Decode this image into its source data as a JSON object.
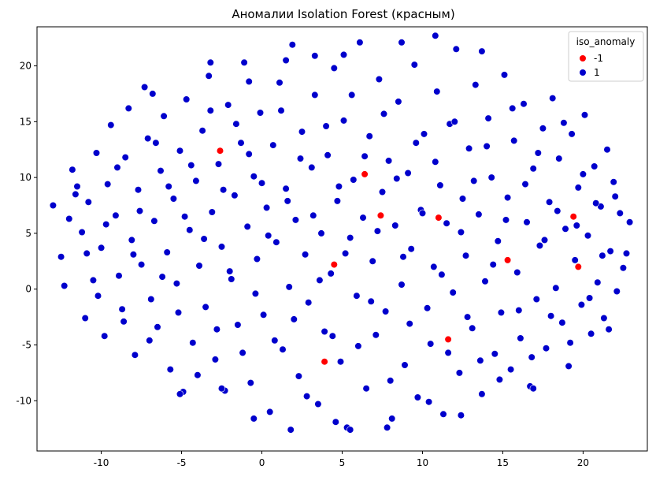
{
  "chart_data": {
    "type": "scatter",
    "title": "Аномалии Isolation Forest (красным)",
    "xlabel": "",
    "ylabel": "",
    "xlim": [
      -14.0,
      24.0
    ],
    "ylim": [
      -14.5,
      23.5
    ],
    "xticks": [
      -10,
      -5,
      0,
      5,
      10,
      15,
      20
    ],
    "yticks": [
      -10,
      -5,
      0,
      5,
      10,
      15,
      20
    ],
    "legend": {
      "title": "iso_anomaly",
      "placement": "top-right",
      "entries": [
        {
          "label": "-1",
          "color": "#ff0000"
        },
        {
          "label": "1",
          "color": "#0000cc"
        }
      ]
    },
    "series": [
      {
        "name": "1",
        "color": "#0000cc",
        "points": [
          [
            -13.0,
            7.5
          ],
          [
            -12.5,
            2.9
          ],
          [
            -12.3,
            0.3
          ],
          [
            -12.0,
            6.3
          ],
          [
            -11.8,
            10.7
          ],
          [
            -11.5,
            9.2
          ],
          [
            -11.2,
            5.1
          ],
          [
            -11.0,
            -2.6
          ],
          [
            -10.8,
            7.8
          ],
          [
            -10.5,
            0.8
          ],
          [
            -10.3,
            12.2
          ],
          [
            -10.0,
            3.7
          ],
          [
            -9.8,
            -4.2
          ],
          [
            -9.6,
            9.4
          ],
          [
            -9.4,
            14.7
          ],
          [
            -9.1,
            6.6
          ],
          [
            -8.9,
            1.2
          ],
          [
            -8.7,
            -1.8
          ],
          [
            -8.5,
            11.8
          ],
          [
            -8.3,
            16.2
          ],
          [
            -8.1,
            4.4
          ],
          [
            -7.9,
            -5.9
          ],
          [
            -7.7,
            8.9
          ],
          [
            -7.5,
            2.2
          ],
          [
            -7.3,
            18.1
          ],
          [
            -7.1,
            13.5
          ],
          [
            -6.9,
            -0.9
          ],
          [
            -6.7,
            6.1
          ],
          [
            -6.5,
            -3.4
          ],
          [
            -6.3,
            10.6
          ],
          [
            -6.1,
            15.5
          ],
          [
            -5.9,
            3.3
          ],
          [
            -5.7,
            -7.2
          ],
          [
            -5.5,
            8.1
          ],
          [
            -5.3,
            0.5
          ],
          [
            -5.1,
            12.4
          ],
          [
            -4.9,
            -9.2
          ],
          [
            -4.7,
            17.0
          ],
          [
            -4.5,
            5.3
          ],
          [
            -4.3,
            -4.8
          ],
          [
            -4.1,
            9.7
          ],
          [
            -3.9,
            2.1
          ],
          [
            -3.7,
            14.2
          ],
          [
            -3.5,
            -1.6
          ],
          [
            -3.3,
            19.1
          ],
          [
            -3.1,
            6.9
          ],
          [
            -2.9,
            -6.3
          ],
          [
            -2.7,
            11.2
          ],
          [
            -2.5,
            3.8
          ],
          [
            -2.3,
            -9.1
          ],
          [
            -2.1,
            16.5
          ],
          [
            -1.9,
            0.9
          ],
          [
            -1.7,
            8.4
          ],
          [
            -1.5,
            -3.2
          ],
          [
            -1.3,
            13.1
          ],
          [
            -1.1,
            20.3
          ],
          [
            -0.9,
            5.6
          ],
          [
            -0.7,
            -8.4
          ],
          [
            -0.5,
            10.1
          ],
          [
            -0.3,
            2.7
          ],
          [
            -0.1,
            15.8
          ],
          [
            0.1,
            -2.3
          ],
          [
            0.3,
            7.3
          ],
          [
            0.5,
            -11.0
          ],
          [
            0.7,
            12.9
          ],
          [
            0.9,
            4.2
          ],
          [
            1.1,
            18.5
          ],
          [
            1.3,
            -5.4
          ],
          [
            1.5,
            9.0
          ],
          [
            1.7,
            0.2
          ],
          [
            1.9,
            21.9
          ],
          [
            2.1,
            6.2
          ],
          [
            2.3,
            -7.8
          ],
          [
            2.5,
            14.1
          ],
          [
            2.7,
            3.1
          ],
          [
            2.9,
            -1.2
          ],
          [
            3.1,
            10.9
          ],
          [
            3.3,
            17.4
          ],
          [
            3.5,
            -10.3
          ],
          [
            3.7,
            5.0
          ],
          [
            3.9,
            -3.8
          ],
          [
            4.1,
            12.0
          ],
          [
            4.3,
            1.4
          ],
          [
            4.5,
            19.8
          ],
          [
            4.7,
            7.9
          ],
          [
            4.9,
            -6.5
          ],
          [
            5.1,
            15.1
          ],
          [
            5.3,
            -12.4
          ],
          [
            5.5,
            4.6
          ],
          [
            5.7,
            9.8
          ],
          [
            5.9,
            -0.6
          ],
          [
            6.1,
            22.1
          ],
          [
            6.3,
            6.4
          ],
          [
            6.5,
            -8.9
          ],
          [
            6.7,
            13.7
          ],
          [
            6.9,
            2.5
          ],
          [
            7.1,
            -4.1
          ],
          [
            7.3,
            18.8
          ],
          [
            7.5,
            8.7
          ],
          [
            7.7,
            -2.0
          ],
          [
            7.9,
            11.5
          ],
          [
            8.1,
            -11.6
          ],
          [
            8.3,
            5.7
          ],
          [
            8.5,
            16.8
          ],
          [
            8.7,
            0.4
          ],
          [
            8.9,
            -6.8
          ],
          [
            9.1,
            10.4
          ],
          [
            9.3,
            3.6
          ],
          [
            9.5,
            20.1
          ],
          [
            9.7,
            -9.7
          ],
          [
            9.9,
            7.1
          ],
          [
            10.1,
            13.9
          ],
          [
            10.3,
            -1.7
          ],
          [
            10.5,
            -4.9
          ],
          [
            10.7,
            2.0
          ],
          [
            10.9,
            17.7
          ],
          [
            11.1,
            9.3
          ],
          [
            11.3,
            -11.2
          ],
          [
            11.5,
            5.9
          ],
          [
            11.7,
            14.8
          ],
          [
            11.9,
            -0.3
          ],
          [
            12.1,
            21.5
          ],
          [
            12.3,
            -7.5
          ],
          [
            12.5,
            8.1
          ],
          [
            12.7,
            3.0
          ],
          [
            12.9,
            12.6
          ],
          [
            13.1,
            -3.5
          ],
          [
            13.3,
            18.3
          ],
          [
            13.5,
            6.7
          ],
          [
            13.7,
            -9.4
          ],
          [
            13.9,
            0.7
          ],
          [
            14.1,
            15.3
          ],
          [
            14.3,
            10.0
          ],
          [
            14.5,
            -5.8
          ],
          [
            14.7,
            4.3
          ],
          [
            14.9,
            -2.1
          ],
          [
            15.1,
            19.2
          ],
          [
            15.3,
            8.2
          ],
          [
            15.5,
            -7.2
          ],
          [
            15.7,
            13.3
          ],
          [
            15.9,
            1.5
          ],
          [
            16.1,
            -4.4
          ],
          [
            16.3,
            16.6
          ],
          [
            16.5,
            6.0
          ],
          [
            16.7,
            -8.7
          ],
          [
            16.9,
            10.8
          ],
          [
            17.1,
            -0.9
          ],
          [
            17.3,
            3.9
          ],
          [
            17.5,
            14.4
          ],
          [
            17.7,
            -5.3
          ],
          [
            17.9,
            7.8
          ],
          [
            18.1,
            17.1
          ],
          [
            18.3,
            0.1
          ],
          [
            18.5,
            11.7
          ],
          [
            18.7,
            -3.0
          ],
          [
            18.9,
            5.4
          ],
          [
            19.1,
            -6.9
          ],
          [
            19.3,
            13.9
          ],
          [
            19.5,
            2.6
          ],
          [
            19.7,
            9.1
          ],
          [
            19.9,
            -1.4
          ],
          [
            20.1,
            15.6
          ],
          [
            20.3,
            4.8
          ],
          [
            20.5,
            -4.0
          ],
          [
            20.7,
            11.0
          ],
          [
            20.9,
            0.6
          ],
          [
            21.1,
            7.4
          ],
          [
            21.3,
            -2.6
          ],
          [
            21.5,
            12.5
          ],
          [
            21.7,
            3.4
          ],
          [
            21.9,
            9.6
          ],
          [
            22.1,
            -0.2
          ],
          [
            22.3,
            6.8
          ],
          [
            22.5,
            1.9
          ],
          [
            22.7,
            3.2
          ],
          [
            22.9,
            6.0
          ],
          [
            -11.6,
            8.5
          ],
          [
            -10.9,
            3.2
          ],
          [
            -10.2,
            -0.6
          ],
          [
            -9.7,
            5.8
          ],
          [
            -9.0,
            10.9
          ],
          [
            -8.6,
            -2.9
          ],
          [
            -8.0,
            3.1
          ],
          [
            -7.6,
            7.0
          ],
          [
            -7.0,
            -4.6
          ],
          [
            -6.6,
            13.1
          ],
          [
            -6.2,
            1.1
          ],
          [
            -5.8,
            9.2
          ],
          [
            -5.2,
            -2.1
          ],
          [
            -4.8,
            6.5
          ],
          [
            -4.4,
            11.1
          ],
          [
            -4.0,
            -7.7
          ],
          [
            -3.6,
            4.5
          ],
          [
            -3.2,
            16.0
          ],
          [
            -2.8,
            -3.6
          ],
          [
            -2.4,
            8.9
          ],
          [
            -2.0,
            1.6
          ],
          [
            -1.6,
            14.8
          ],
          [
            -1.2,
            -5.7
          ],
          [
            -0.8,
            12.1
          ],
          [
            -0.4,
            -0.4
          ],
          [
            0.0,
            9.5
          ],
          [
            0.4,
            4.8
          ],
          [
            0.8,
            -4.6
          ],
          [
            1.2,
            16.0
          ],
          [
            1.6,
            7.9
          ],
          [
            2.0,
            -2.7
          ],
          [
            2.4,
            11.7
          ],
          [
            2.8,
            -9.6
          ],
          [
            3.2,
            6.6
          ],
          [
            3.6,
            0.8
          ],
          [
            4.0,
            14.6
          ],
          [
            4.4,
            -4.2
          ],
          [
            4.8,
            9.2
          ],
          [
            5.2,
            3.2
          ],
          [
            5.6,
            17.4
          ],
          [
            6.0,
            -5.1
          ],
          [
            6.4,
            11.9
          ],
          [
            6.8,
            -1.1
          ],
          [
            7.2,
            5.2
          ],
          [
            7.6,
            15.7
          ],
          [
            8.0,
            -8.2
          ],
          [
            8.4,
            9.9
          ],
          [
            8.8,
            2.9
          ],
          [
            9.2,
            -3.1
          ],
          [
            9.6,
            13.1
          ],
          [
            10.0,
            6.8
          ],
          [
            10.4,
            -10.1
          ],
          [
            10.8,
            11.4
          ],
          [
            11.2,
            1.3
          ],
          [
            11.6,
            -5.7
          ],
          [
            12.0,
            15.0
          ],
          [
            12.4,
            5.1
          ],
          [
            12.8,
            -2.5
          ],
          [
            13.2,
            9.7
          ],
          [
            13.6,
            -6.4
          ],
          [
            14.0,
            12.8
          ],
          [
            14.4,
            2.2
          ],
          [
            14.8,
            -8.1
          ],
          [
            15.2,
            6.2
          ],
          [
            15.6,
            16.2
          ],
          [
            16.0,
            -1.9
          ],
          [
            16.4,
            9.4
          ],
          [
            16.8,
            -6.1
          ],
          [
            17.2,
            12.2
          ],
          [
            17.6,
            4.4
          ],
          [
            18.0,
            -2.4
          ],
          [
            18.4,
            7.0
          ],
          [
            18.8,
            14.9
          ],
          [
            19.2,
            -4.8
          ],
          [
            19.6,
            5.7
          ],
          [
            20.0,
            10.3
          ],
          [
            20.4,
            -0.8
          ],
          [
            20.8,
            7.7
          ],
          [
            21.2,
            3.0
          ],
          [
            21.6,
            -3.6
          ],
          [
            22.0,
            8.3
          ],
          [
            -0.5,
            -11.6
          ],
          [
            1.8,
            -12.6
          ],
          [
            4.6,
            -11.9
          ],
          [
            5.5,
            -12.6
          ],
          [
            7.8,
            -12.4
          ],
          [
            12.4,
            -11.3
          ],
          [
            -2.5,
            -8.9
          ],
          [
            -5.1,
            -9.4
          ],
          [
            16.9,
            -8.9
          ],
          [
            1.5,
            20.5
          ],
          [
            3.3,
            20.9
          ],
          [
            5.1,
            21.0
          ],
          [
            8.7,
            22.1
          ],
          [
            10.8,
            22.7
          ],
          [
            13.7,
            21.3
          ],
          [
            -3.2,
            20.3
          ],
          [
            -0.8,
            18.6
          ],
          [
            -6.8,
            17.5
          ]
        ]
      },
      {
        "name": "-1",
        "color": "#ff0000",
        "points": [
          [
            -2.6,
            12.4
          ],
          [
            6.4,
            10.3
          ],
          [
            7.4,
            6.6
          ],
          [
            11.0,
            6.4
          ],
          [
            19.4,
            6.5
          ],
          [
            15.3,
            2.6
          ],
          [
            19.7,
            2.0
          ],
          [
            4.5,
            2.2
          ],
          [
            11.6,
            -4.5
          ],
          [
            3.9,
            -6.5
          ]
        ]
      }
    ]
  }
}
